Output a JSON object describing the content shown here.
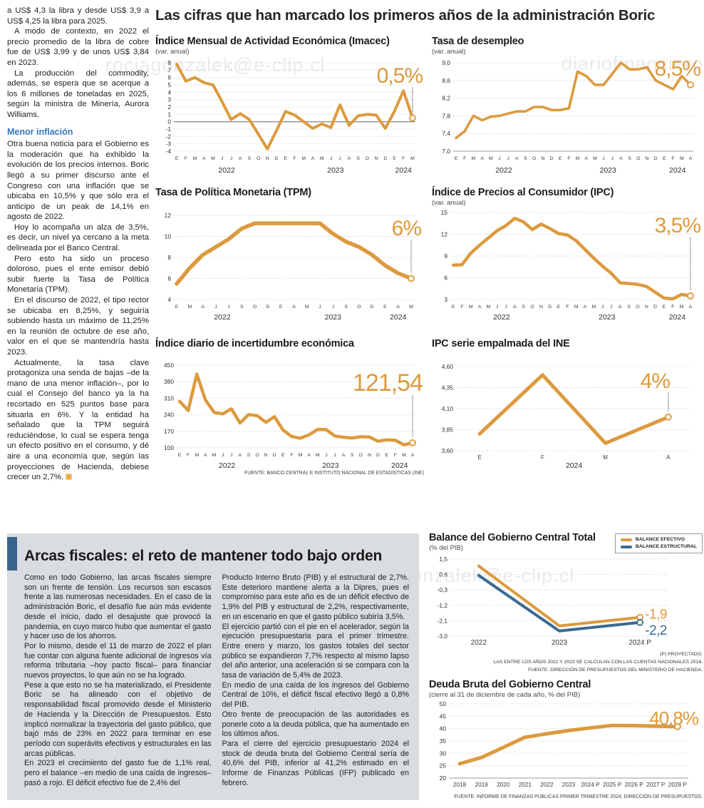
{
  "colors": {
    "orange": "#DC9A3E",
    "blue": "#3A6B92",
    "heading_blue": "#3478BD",
    "section_bar_blue": "#3A648C",
    "section_bg": "#D9DCE1"
  },
  "watermarks": [
    "rociagonzalek@e-clip.cl",
    "diariofinanciero",
    "diariofinanciero#agonzalek@e-clip.cl"
  ],
  "headline": "Las cifras que han marcado los primeros años de la administración Boric",
  "left_article": {
    "p1": "a US$ 4,3 la libra y desde US$ 3,9 a US$ 4,25 la libra para 2025.",
    "p2": "A modo de contexto, en 2022 el precio promedio de la libra de cobre fue de US$ 3,99 y de unos US$ 3,84 en 2023.",
    "p3": "La producción del commodity, además, se espera que se acerque a los 6 millones de toneladas en 2025, según la ministra de Minería, Aurora Williams.",
    "subheading": "Menor inflación",
    "p4": "Otra buena noticia para el Gobierno es la moderación que ha exhibido la evolución de los precios internos. Boric llegó a su primer discurso ante el Congreso con una inflación que se ubicaba en 10,5% y que sólo era el anticipo de un peak de 14,1% en agosto de 2022.",
    "p5": "Hoy lo acompaña un alza de 3,5%, es decir, un nivel ya cercano a la meta delineada por el Banco Central.",
    "p6": "Pero esto ha sido un proceso doloroso, pues el ente emisor debió subir fuerte la Tasa de Política Monetaria (TPM).",
    "p7": "En el discurso de 2022, el tipo rector se ubicaba en 8,25%, y seguiría subiendo hasta un máximo de 11,25% en la reunión de octubre de ese año, valor en el que se mantendría hasta 2023.",
    "p8": "Actualmente, la tasa clave protagoniza una senda de bajas –de la mano de una menor inflación–, por lo cual el Consejo del banco ya la ha recortado en 525 puntos base para situarla en 6%. Y la entidad ha señalado que la TPM seguirá reduciéndose, lo cual se espera tenga un efecto positivo en el consumo, y dé aire a una economía que, según las proyecciones de Hacienda, debiese crecer un 2,7%."
  },
  "fiscal_section": {
    "title": "Arcas fiscales: el reto de mantener todo bajo orden",
    "col1": {
      "p1": "Como en todo Gobierno, las arcas fiscales siempre son un frente de tensión. Los recursos son escasos frente a las numerosas necesidades. En el caso de la administración Boric, el desafío fue aún más evidente desde el inicio, dado el desajuste que provocó la pandemia, en cuyo marco hubo que aumentar el gasto y hacer uso de los ahorros.",
      "p2": "Por lo mismo, desde el 11 de marzo de 2022 el plan fue contar con alguna fuente adicional de ingresos vía reforma tributaria –hoy pacto fiscal– para financiar nuevos proyectos, lo que aún no se ha logrado.",
      "p3": "Pese a que esto no se ha materializado, el Presidente Boric se ha alineado con el objetivo de responsabilidad fiscal promovido desde el Ministerio de Hacienda y la Dirección de Presupuestos. Esto implicó normalizar la trayectoria del gasto público, que bajó más de 23% en 2022 para terminar en ese período con superávits efectivos y estructurales en las arcas públicas.",
      "p4": "En 2023 el crecimiento del gasto fue de 1,1% real, pero el balance –en medio de una caída de ingresos–  pasó a rojo. El déficit efectivo fue de 2,4% del"
    },
    "col2": {
      "p1": "Producto Interno Bruto (PIB) y el estructural de 2,7%. Este deterioro mantiene alerta a la Dipres, pues el compromiso para este año es de un déficit efectivo de 1,9% del PIB y estructural de 2,2%, respectivamente, en un escenario en que el gasto público subiría 3,5%.",
      "p2": "El ejercicio partió con el pie en el acelerador, según la ejecución presupuestaria para el primer trimestre. Entre enero y marzo, los gastos totales del sector público se expandieron 7,7% respecto al mismo lapso del año anterior, una aceleración si se compara con la tasa de variación de 5,4% de 2023.",
      "p3": "En medio de una caída de los ingresos del Gobierno Central de 10%, el déficit fiscal efectivo llegó a 0,8% del PIB.",
      "p4": "Otro frente de preocupación de las autoridades es ponerle coto a la deuda pública, que ha aumentado en los últimos años.",
      "p5": "Para el cierre del ejercicio presupuestario 2024 el stock de deuda bruta del Gobierno Central sería de 40,6% del PIB, inferior al 41,2% estimado en el Informe de Finanzas Públicas (IFP) publicado en febrero."
    }
  },
  "chart_data": [
    {
      "type": "line",
      "title": "Índice Mensual de Actividad Económica (Imacec)",
      "subtitle": "(var. anual)",
      "categories": [
        "E",
        "F",
        "M",
        "A",
        "M",
        "J",
        "J",
        "A",
        "S",
        "O",
        "N",
        "D",
        "E",
        "F",
        "M",
        "A",
        "M",
        "J",
        "J",
        "A",
        "S",
        "O",
        "N",
        "D",
        "E",
        "F",
        "M"
      ],
      "values": [
        7.8,
        5.5,
        6.0,
        5.3,
        5.0,
        2.7,
        0.3,
        1.1,
        0.3,
        -1.7,
        -3.7,
        -1.2,
        1.4,
        0.9,
        0.0,
        -0.9,
        -0.3,
        -0.8,
        2.3,
        -0.5,
        0.8,
        1.0,
        0.9,
        -0.9,
        1.4,
        4.2,
        0.5
      ],
      "ylim": [
        -4,
        8
      ],
      "yticks": [
        [
          "8",
          8
        ],
        [
          "7",
          7
        ],
        [
          "6",
          6
        ],
        [
          "5",
          5
        ],
        [
          "4",
          4
        ],
        [
          "3",
          3
        ],
        [
          "2",
          2
        ],
        [
          "1",
          1
        ],
        [
          "0",
          0
        ],
        [
          "-1",
          -1
        ],
        [
          "-2",
          -2
        ],
        [
          "-3",
          -3
        ],
        [
          "-4",
          -4
        ]
      ],
      "year_marks": [
        {
          "label": "2022",
          "at": 5.5
        },
        {
          "label": "2023",
          "at": 17.5
        },
        {
          "label": "2024",
          "at": 25
        }
      ],
      "callout": "0,5%"
    },
    {
      "type": "line",
      "title": "Tasa de desempleo",
      "subtitle": "(var. anual)",
      "categories": [
        "E",
        "F",
        "M",
        "A",
        "M",
        "J",
        "J",
        "A",
        "S",
        "O",
        "N",
        "D",
        "E",
        "F",
        "M",
        "A",
        "M",
        "J",
        "J",
        "A",
        "S",
        "O",
        "N",
        "D",
        "E",
        "F",
        "M",
        "A"
      ],
      "values": [
        7.3,
        7.45,
        7.8,
        7.7,
        7.78,
        7.8,
        7.85,
        7.9,
        7.9,
        8.0,
        8.0,
        7.93,
        7.93,
        7.97,
        8.8,
        8.7,
        8.5,
        8.5,
        8.75,
        9.0,
        8.85,
        8.85,
        8.9,
        8.6,
        8.5,
        8.4,
        8.7,
        8.5
      ],
      "ylim": [
        7.0,
        9.0
      ],
      "yticks": [
        [
          "9,0",
          9.0
        ],
        [
          "8,6",
          8.6
        ],
        [
          "8,2",
          8.2
        ],
        [
          "7,8",
          7.8
        ],
        [
          "7,4",
          7.4
        ],
        [
          "7,0",
          7.0
        ]
      ],
      "year_marks": [
        {
          "label": "2022",
          "at": 5.5
        },
        {
          "label": "2023",
          "at": 17.5
        },
        {
          "label": "2024",
          "at": 25.5
        }
      ],
      "callout": "8,5%"
    },
    {
      "type": "line",
      "title": "Tasa de Política Monetaria (TPM)",
      "subtitle": "",
      "categories": [
        "E",
        "M",
        "A",
        "J",
        "J",
        "S",
        "O",
        "D",
        "E",
        "A",
        "M",
        "J",
        "J",
        "S",
        "O",
        "D",
        "E",
        "A",
        "M"
      ],
      "values": [
        5.5,
        7.0,
        8.25,
        9.0,
        9.75,
        10.75,
        11.25,
        11.25,
        11.25,
        11.25,
        11.25,
        11.25,
        10.25,
        9.5,
        9.0,
        8.25,
        7.25,
        6.5,
        6.0
      ],
      "ylim": [
        4,
        12
      ],
      "yticks": [
        [
          "12",
          12
        ],
        [
          "10",
          10
        ],
        [
          "8",
          8
        ],
        [
          "6",
          6
        ],
        [
          "4",
          4
        ]
      ],
      "year_marks": [
        {
          "label": "2022",
          "at": 3.5
        },
        {
          "label": "2023",
          "at": 12
        },
        {
          "label": "2024",
          "at": 17
        }
      ],
      "callout": "6%"
    },
    {
      "type": "line",
      "title": "Índice de Precios al Consumidor (IPC)",
      "subtitle": "(var. anual)",
      "categories": [
        "E",
        "F",
        "M",
        "A",
        "M",
        "J",
        "J",
        "A",
        "S",
        "O",
        "N",
        "D",
        "E",
        "F",
        "M",
        "A",
        "M",
        "J",
        "J",
        "A",
        "S",
        "O",
        "N",
        "D",
        "E",
        "F",
        "M",
        "A"
      ],
      "values": [
        7.75,
        7.8,
        9.4,
        10.5,
        11.5,
        12.5,
        13.2,
        14.2,
        13.7,
        12.65,
        13.4,
        12.8,
        12.1,
        11.9,
        11.1,
        9.9,
        8.7,
        7.6,
        6.6,
        5.3,
        5.2,
        5.1,
        4.8,
        4.0,
        3.2,
        3.1,
        3.7,
        3.5
      ],
      "ylim": [
        3,
        15
      ],
      "yticks": [
        [
          "15",
          15
        ],
        [
          "12",
          12
        ],
        [
          "9",
          9
        ],
        [
          "6",
          6
        ],
        [
          "3",
          3
        ]
      ],
      "year_marks": [
        {
          "label": "2022",
          "at": 5.5
        },
        {
          "label": "2023",
          "at": 17.5
        },
        {
          "label": "2024",
          "at": 25.5
        }
      ],
      "callout": "3,5%"
    },
    {
      "type": "line",
      "title": "Índice diario de incertidumbre económica",
      "subtitle": "",
      "categories": [
        "E",
        "F",
        "M",
        "A",
        "M",
        "J",
        "J",
        "A",
        "S",
        "O",
        "N",
        "D",
        "E",
        "F",
        "M",
        "A",
        "M",
        "J",
        "J",
        "A",
        "S",
        "O",
        "N",
        "D",
        "E",
        "F",
        "M",
        "A"
      ],
      "values": [
        297,
        258,
        412,
        303,
        250,
        244,
        265,
        205,
        241,
        236,
        208,
        232,
        175,
        148,
        141,
        155,
        178,
        177,
        150,
        145,
        142,
        147,
        146,
        128,
        134,
        132,
        113,
        121.54
      ],
      "ylim": [
        100,
        450
      ],
      "yticks": [
        [
          "450",
          450
        ],
        [
          "380",
          380
        ],
        [
          "310",
          310
        ],
        [
          "240",
          240
        ],
        [
          "170",
          170
        ],
        [
          "100",
          100
        ]
      ],
      "year_marks": [
        {
          "label": "2022",
          "at": 5.5
        },
        {
          "label": "2023",
          "at": 17.5
        },
        {
          "label": "2024",
          "at": 25.5
        }
      ],
      "callout": "121,54",
      "source": "FUENTE: BANCO CENTRAL E INSTITUTO NACIONAL DE ESTADÍSTICAS (INE)"
    },
    {
      "type": "line",
      "title": "IPC serie empalmada del INE",
      "subtitle": "",
      "categories": [
        "E",
        "F",
        "M",
        "A"
      ],
      "values": [
        3.8,
        4.5,
        3.69,
        4.0
      ],
      "ylim": [
        3.6,
        4.6
      ],
      "yticks": [
        [
          "4,60",
          4.6
        ],
        [
          "4,35",
          4.35
        ],
        [
          "4,10",
          4.1
        ],
        [
          "3,85",
          3.85
        ],
        [
          "3,60",
          3.6
        ]
      ],
      "year_marks": [
        {
          "label": "2024",
          "at": 1.5
        }
      ],
      "callout": "4%"
    },
    {
      "type": "line",
      "title": "Balance del Gobierno Central Total",
      "subtitle": "(% del PIB)",
      "categories": [
        "2022",
        "2023",
        "2024 P"
      ],
      "series": [
        {
          "name": "BALANCE EFECTIVO",
          "color": "orange",
          "values": [
            1.1,
            -2.4,
            -1.9
          ],
          "end_label": "-1,9"
        },
        {
          "name": "BALANCE ESTRUCTURAL",
          "color": "blue",
          "values": [
            0.55,
            -2.7,
            -2.2
          ],
          "end_label": "-2,2"
        }
      ],
      "legend": [
        {
          "label": "BALANCE EFECTIVO",
          "color": "orange"
        },
        {
          "label": "BALANCE ESTRUCTURAL",
          "color": "blue"
        }
      ],
      "ylim": [
        -3.0,
        1.5
      ],
      "yticks": [
        [
          "1,5",
          1.5
        ],
        [
          "0,6",
          0.6
        ],
        [
          "-0,3",
          -0.3
        ],
        [
          "-1,2",
          -1.2
        ],
        [
          "-2,1",
          -2.1
        ],
        [
          "-3,0",
          -3.0
        ]
      ],
      "footnotes": [
        "(P) PROYECTADO.",
        "LAS ENTRE LOS AÑOS 2021 Y 2023 SE CALCULAN  CON LAS CUENTAS NACIONALES 2018.",
        "FUENTE: DIRECCIÓN DE PRESUPUESTOS DEL MINISTERIO DE HACIENDA."
      ]
    },
    {
      "type": "line",
      "title": "Deuda Bruta del Gobierno Central",
      "subtitle": "(cierre al 31 de diciembre de cada año, % del PIB)",
      "categories": [
        "2018",
        "2019",
        "2020",
        "2021",
        "2022",
        "2023",
        "2024 P",
        "2025 P",
        "2026 P",
        "2027 P",
        "2028 P"
      ],
      "values": [
        25.8,
        28.3,
        32.4,
        36.5,
        37.9,
        39.2,
        40.3,
        41.3,
        41.2,
        41.0,
        40.8
      ],
      "ylim": [
        20,
        50
      ],
      "yticks": [
        [
          "50",
          50
        ],
        [
          "45",
          45
        ],
        [
          "40",
          40
        ],
        [
          "35",
          35
        ],
        [
          "30",
          30
        ],
        [
          "25",
          25
        ],
        [
          "20",
          20
        ]
      ],
      "callout": "40,8%",
      "source": "FUENTE: INFORME DE FINANZAS PÚBLICAS PRIMER TRIMESTRE 2024, DIRECCIÓN DE PRESUPUESTOS."
    }
  ]
}
